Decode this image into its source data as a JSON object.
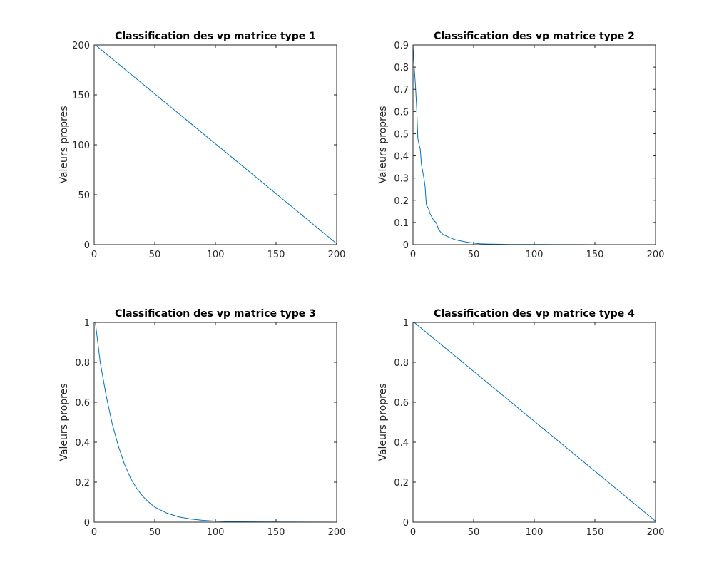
{
  "figure": {
    "background": "#ffffff",
    "line_color": "#0072bd",
    "axis_color": "#262626"
  },
  "chart_data": [
    {
      "type": "line",
      "title": "Classification des vp matrice type 1",
      "xlabel": "",
      "ylabel": "Valeurs propres",
      "xlim": [
        0,
        200
      ],
      "ylim": [
        0,
        200
      ],
      "xticks": [
        0,
        50,
        100,
        150,
        200
      ],
      "yticks": [
        0,
        50,
        100,
        150,
        200
      ],
      "x": [
        1,
        200
      ],
      "y": [
        200,
        1
      ]
    },
    {
      "type": "line",
      "title": "Classification des vp matrice type 2",
      "xlabel": "",
      "ylabel": "Valeurs propres",
      "xlim": [
        0,
        200
      ],
      "ylim": [
        0,
        0.9
      ],
      "xticks": [
        0,
        50,
        100,
        150,
        200
      ],
      "yticks": [
        0,
        0.1,
        0.2,
        0.3,
        0.4,
        0.5,
        0.6,
        0.7,
        0.8,
        0.9
      ],
      "x": [
        0,
        1,
        2,
        3,
        4,
        5,
        6,
        7,
        8,
        9,
        10,
        11,
        12,
        13,
        14,
        15,
        17,
        19,
        21,
        23,
        25,
        28,
        31,
        35,
        40,
        45,
        50,
        55,
        60,
        70,
        80,
        100,
        120,
        136,
        150,
        200
      ],
      "y": [
        0.9,
        0.8,
        0.72,
        0.62,
        0.48,
        0.45,
        0.43,
        0.36,
        0.33,
        0.3,
        0.26,
        0.18,
        0.17,
        0.16,
        0.14,
        0.13,
        0.11,
        0.1,
        0.07,
        0.055,
        0.045,
        0.038,
        0.03,
        0.022,
        0.016,
        0.011,
        0.007,
        0.004,
        0.003,
        0.002,
        0.001,
        0.0008,
        0.0005,
        0.0003,
        0.0001,
        0
      ]
    },
    {
      "type": "line",
      "title": "Classification des vp matrice type 3",
      "xlabel": "",
      "ylabel": "Valeurs propres",
      "xlim": [
        0,
        200
      ],
      "ylim": [
        0,
        1
      ],
      "xticks": [
        0,
        50,
        100,
        150,
        200
      ],
      "yticks": [
        0,
        0.2,
        0.4,
        0.6,
        0.8,
        1
      ],
      "x": [
        1,
        5,
        10,
        15,
        20,
        25,
        30,
        35,
        40,
        45,
        50,
        60,
        70,
        80,
        90,
        100,
        120,
        150,
        200
      ],
      "y": [
        1,
        0.8,
        0.63,
        0.49,
        0.38,
        0.29,
        0.22,
        0.17,
        0.13,
        0.1,
        0.075,
        0.045,
        0.026,
        0.015,
        0.009,
        0.005,
        0.002,
        0.001,
        0.0002
      ]
    },
    {
      "type": "line",
      "title": "Classification des vp matrice type 4",
      "xlabel": "",
      "ylabel": "Valeurs propres",
      "xlim": [
        0,
        200
      ],
      "ylim": [
        0,
        1
      ],
      "xticks": [
        0,
        50,
        100,
        150,
        200
      ],
      "yticks": [
        0,
        0.2,
        0.4,
        0.6,
        0.8,
        1
      ],
      "x": [
        1,
        200
      ],
      "y": [
        1,
        0.005
      ]
    }
  ]
}
